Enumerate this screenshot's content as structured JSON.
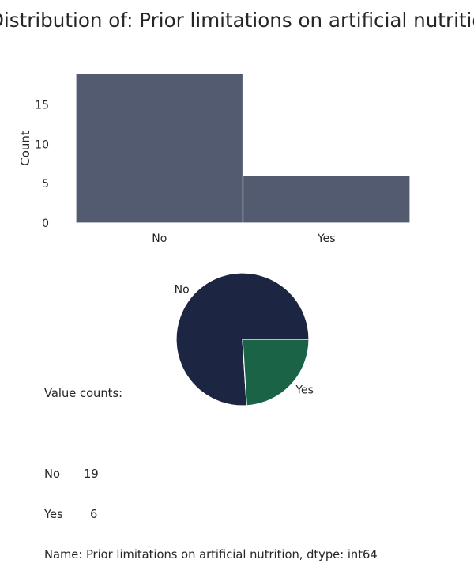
{
  "page": {
    "title": "Distribution of: Prior limitations on artificial nutrition",
    "value_counts_header": "Value counts:",
    "value_counts": [
      {
        "label": "No",
        "count": "19"
      },
      {
        "label": "Yes",
        "count": "6"
      }
    ],
    "series_footer": "Name: Prior limitations on artificial nutrition, dtype: int64"
  },
  "chart_data": [
    {
      "type": "bar",
      "categories": [
        "No",
        "Yes"
      ],
      "values": [
        19,
        6
      ],
      "xlabel": "",
      "ylabel": "Count",
      "ylim": [
        0,
        19.95
      ],
      "yticks": [
        0,
        5,
        10,
        15
      ],
      "grid": false,
      "color": "#535b70"
    },
    {
      "type": "pie",
      "labels": [
        "No",
        "Yes"
      ],
      "values": [
        19,
        6
      ],
      "colors": [
        "#1c2541",
        "#1b6346"
      ]
    }
  ]
}
